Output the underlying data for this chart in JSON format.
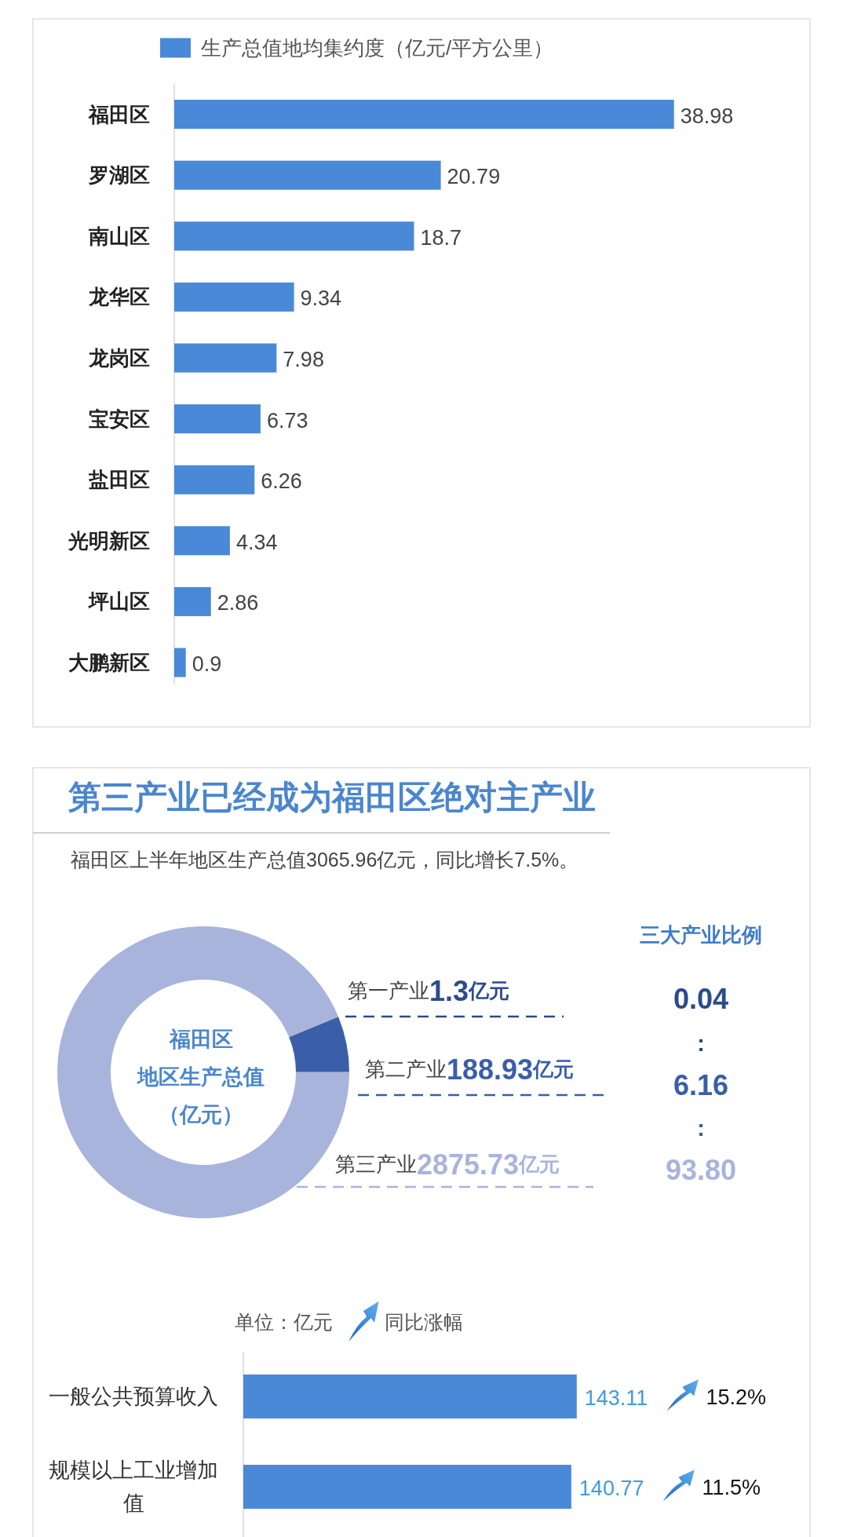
{
  "chart_data": [
    {
      "type": "bar",
      "orientation": "horizontal",
      "categories": [
        "福田区",
        "罗湖区",
        "南山区",
        "龙华区",
        "龙岗区",
        "宝安区",
        "盐田区",
        "光明新区",
        "坪山区",
        "大鹏新区"
      ],
      "series": [
        {
          "name": "生产总值地均集约度（亿元/平方公里）",
          "color": "#4a89d8",
          "values": [
            38.98,
            20.79,
            18.7,
            9.34,
            7.98,
            6.73,
            6.26,
            4.34,
            2.86,
            0.9
          ]
        }
      ],
      "data_labels": true,
      "legend": "top left",
      "tick_labels": "y"
    },
    {
      "type": "donut",
      "title": "第三产业已经成为福田区绝对主产业",
      "subtitle": "福田区上半年地区生产总值3065.96亿元，同比增长7.5%。",
      "categories": [
        "第一产业",
        "第二产业",
        "第三产业"
      ],
      "values": [
        1.3,
        188.93,
        2875.73
      ],
      "colors": [
        "#2c4b8c",
        "#3b5ea9",
        "#a8b4dc"
      ],
      "value_labels": [
        "1.3亿元",
        "188.93亿元",
        "2875.73亿元"
      ],
      "annotations": [
        "福田区",
        "地区生产总值",
        "（亿元）",
        "三大产业比例",
        "0.04",
        ":",
        "6.16",
        ":",
        "93.80"
      ]
    },
    {
      "type": "bar",
      "orientation": "horizontal",
      "categories": [
        "一般公共预算收入",
        "规模以上工业增加值"
      ],
      "series": [
        {
          "color": "#4a89d8",
          "values": [
            143.11,
            140.77
          ]
        }
      ],
      "data_labels": true,
      "tick_labels": "y",
      "annotations": [
        "单位：亿元",
        "同比涨幅",
        "15.2%",
        "11.5%"
      ]
    }
  ]
}
